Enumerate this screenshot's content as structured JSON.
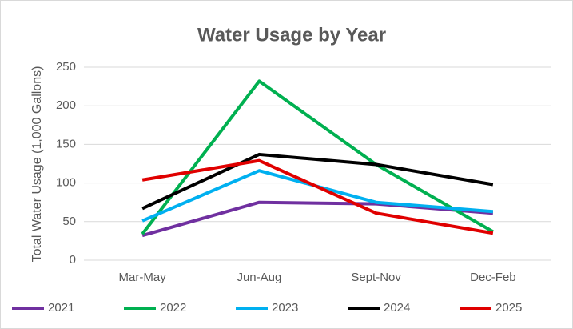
{
  "chart_data": {
    "type": "line",
    "title": "Water Usage by Year",
    "y_label": "Total Water Usage (1,000 Gallons)",
    "categories": [
      "Mar-May",
      "Jun-Aug",
      "Sept-Nov",
      "Dec-Feb"
    ],
    "series": [
      {
        "name": "2021",
        "color": "#7030a0",
        "values": [
          32,
          75,
          73,
          61
        ]
      },
      {
        "name": "2022",
        "color": "#00b050",
        "values": [
          34,
          232,
          124,
          37
        ]
      },
      {
        "name": "2023",
        "color": "#00b0f0",
        "values": [
          51,
          116,
          75,
          63
        ]
      },
      {
        "name": "2024",
        "color": "#000000",
        "values": [
          67,
          137,
          124,
          98
        ]
      },
      {
        "name": "2025",
        "color": "#e00000",
        "values": [
          104,
          129,
          61,
          35
        ]
      }
    ],
    "ylim": [
      0,
      250
    ],
    "yticks": [
      0,
      50,
      100,
      150,
      200,
      250
    ],
    "grid": true,
    "legend": "bottom"
  }
}
